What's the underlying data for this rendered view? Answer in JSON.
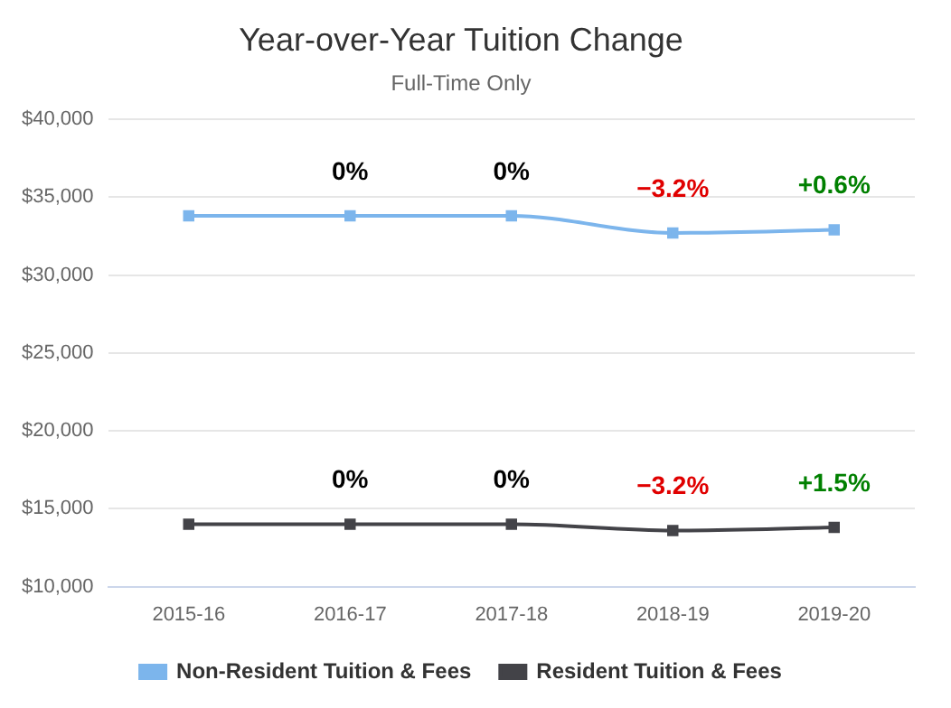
{
  "chart_data": {
    "type": "line",
    "title": "Year-over-Year Tuition Change",
    "subtitle": "Full-Time Only",
    "categories": [
      "2015-16",
      "2016-17",
      "2017-18",
      "2018-19",
      "2019-20"
    ],
    "series": [
      {
        "name": "Non-Resident Tuition & Fees",
        "color": "#7cb5ec",
        "values": [
          33800,
          33800,
          33800,
          32700,
          32900
        ]
      },
      {
        "name": "Resident Tuition & Fees",
        "color": "#434348",
        "values": [
          14000,
          14000,
          14000,
          13600,
          13800
        ]
      }
    ],
    "ylim": [
      10000,
      40000
    ],
    "yticks": [
      {
        "value": 10000,
        "label": "$10,000"
      },
      {
        "value": 15000,
        "label": "$15,000"
      },
      {
        "value": 20000,
        "label": "$20,000"
      },
      {
        "value": 25000,
        "label": "$25,000"
      },
      {
        "value": 30000,
        "label": "$30,000"
      },
      {
        "value": 35000,
        "label": "$35,000"
      },
      {
        "value": 40000,
        "label": "$40,000"
      }
    ],
    "grid": "y",
    "legend": "bottom",
    "marker": "square",
    "line_style": "solid",
    "annotations": [
      {
        "text": "0%",
        "x": "2016-17",
        "y": 33800
      },
      {
        "text": "0%",
        "x": "2017-18",
        "y": 33800
      },
      {
        "text": "−3.2%",
        "x": "2018-19",
        "y": 32700
      },
      {
        "text": "+0.6%",
        "x": "2019-20",
        "y": 32900
      },
      {
        "text": "0%",
        "x": "2016-17",
        "y": 14000
      },
      {
        "text": "0%",
        "x": "2017-18",
        "y": 14000
      },
      {
        "text": "−3.2%",
        "x": "2018-19",
        "y": 13600
      },
      {
        "text": "+1.5%",
        "x": "2019-20",
        "y": 13800
      }
    ]
  }
}
